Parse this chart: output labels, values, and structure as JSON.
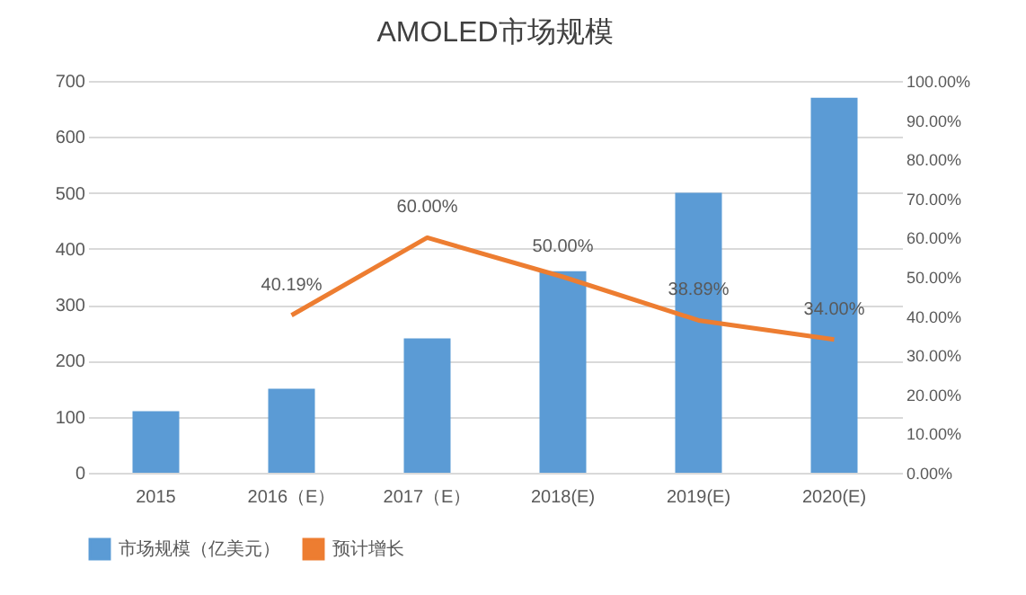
{
  "chart_data": {
    "type": "bar",
    "title": "AMOLED市场规模",
    "categories": [
      "2015",
      "2016（E）",
      "2017（E）",
      "2018(E)",
      "2019(E)",
      "2020(E)"
    ],
    "series": [
      {
        "name": "市场规模（亿美元）",
        "color": "#5b9bd5",
        "values": [
          110,
          150,
          240,
          360,
          500,
          670
        ]
      },
      {
        "name": "预计增长",
        "type": "line",
        "axis": "y2",
        "color": "#ed7d31",
        "values": [
          null,
          40.19,
          60.0,
          50.0,
          38.89,
          34.0
        ],
        "value_labels": [
          null,
          "40.19%",
          "60.00%",
          "50.00%",
          "38.89%",
          "34.00%"
        ]
      }
    ],
    "ylim": [
      0,
      700
    ],
    "yticks": [
      0,
      100,
      200,
      300,
      400,
      500,
      600,
      700
    ],
    "y2lim": [
      0,
      100
    ],
    "y2ticks": [
      {
        "value": 0,
        "label": "0.00%"
      },
      {
        "value": 10,
        "label": "10.00%"
      },
      {
        "value": 20,
        "label": "20.00%"
      },
      {
        "value": 30,
        "label": "30.00%"
      },
      {
        "value": 40,
        "label": "40.00%"
      },
      {
        "value": 50,
        "label": "50.00%"
      },
      {
        "value": 60,
        "label": "60.00%"
      },
      {
        "value": 70,
        "label": "70.00%"
      },
      {
        "value": 80,
        "label": "80.00%"
      },
      {
        "value": 90,
        "label": "90.00%"
      },
      {
        "value": 100,
        "label": "100.00%"
      }
    ],
    "grid": "y",
    "legend": "bottom",
    "marker": "none",
    "line_style": "solid"
  }
}
